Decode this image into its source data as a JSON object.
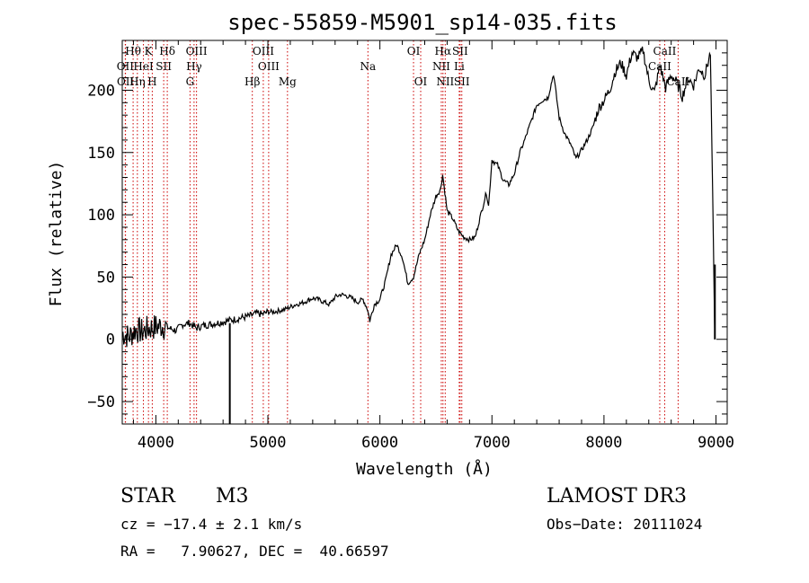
{
  "chart_data": {
    "type": "line",
    "title": "spec-55859-M5901_sp14-035.fits",
    "xlabel": "Wavelength (Å)",
    "ylabel": "Flux (relative)",
    "xlim": [
      3700,
      9100
    ],
    "ylim": [
      -68,
      240
    ],
    "xticks": [
      4000,
      5000,
      6000,
      7000,
      8000,
      9000
    ],
    "xtick_labels": [
      "4000",
      "5000",
      "6000",
      "7000",
      "8000",
      "9000"
    ],
    "yticks": [
      -50,
      0,
      50,
      100,
      150,
      200
    ],
    "ytick_labels": [
      "−50",
      "0",
      "50",
      "100",
      "150",
      "200"
    ],
    "series": [
      {
        "name": "flux",
        "x": [
          3700,
          3760,
          3820,
          3880,
          3940,
          4000,
          4060,
          4120,
          4180,
          4240,
          4300,
          4360,
          4420,
          4480,
          4540,
          4600,
          4650,
          4700,
          4750,
          4800,
          4850,
          4900,
          4950,
          5000,
          5050,
          5100,
          5150,
          5200,
          5250,
          5300,
          5350,
          5400,
          5450,
          5500,
          5550,
          5600,
          5650,
          5700,
          5750,
          5800,
          5850,
          5890,
          5910,
          5950,
          6000,
          6050,
          6100,
          6150,
          6200,
          6250,
          6300,
          6350,
          6400,
          6450,
          6500,
          6540,
          6560,
          6580,
          6600,
          6650,
          6700,
          6750,
          6800,
          6850,
          6900,
          6950,
          6970,
          7000,
          7050,
          7100,
          7150,
          7200,
          7250,
          7300,
          7350,
          7400,
          7450,
          7500,
          7550,
          7600,
          7650,
          7700,
          7750,
          7800,
          7850,
          7900,
          7950,
          8000,
          8050,
          8100,
          8150,
          8200,
          8250,
          8300,
          8350,
          8400,
          8450,
          8500,
          8550,
          8600,
          8650,
          8700,
          8750,
          8800,
          8850,
          8900,
          8950,
          8990
        ],
        "y": [
          5,
          2,
          8,
          6,
          9,
          10,
          11,
          9,
          7,
          12,
          13,
          9,
          11,
          12,
          13,
          14,
          15,
          16,
          17,
          18,
          19,
          21,
          20,
          22,
          22,
          23,
          24,
          26,
          28,
          29,
          31,
          33,
          32,
          30,
          28,
          34,
          36,
          35,
          33,
          30,
          32,
          24,
          15,
          28,
          32,
          47,
          68,
          76,
          66,
          45,
          50,
          68,
          80,
          100,
          115,
          120,
          132,
          118,
          103,
          97,
          87,
          82,
          80,
          82,
          100,
          118,
          107,
          144,
          140,
          128,
          124,
          133,
          150,
          162,
          175,
          188,
          192,
          194,
          213,
          178,
          165,
          157,
          145,
          152,
          160,
          170,
          185,
          192,
          200,
          215,
          222,
          212,
          230,
          226,
          232,
          208,
          198,
          220,
          202,
          212,
          206,
          195,
          210,
          204,
          218,
          212,
          230,
          0
        ]
      }
    ],
    "lines": [
      {
        "name": "Hθ",
        "x": 3797,
        "row": 0
      },
      {
        "name": "OII",
        "x": 3727,
        "row": 1
      },
      {
        "name": "OII",
        "x": 3729,
        "row": 2
      },
      {
        "name": "K",
        "x": 3934,
        "row": 0
      },
      {
        "name": "HeI",
        "x": 3889,
        "row": 1
      },
      {
        "name": "Hη",
        "x": 3835,
        "row": 2
      },
      {
        "name": "Hδ",
        "x": 4102,
        "row": 0
      },
      {
        "name": "SII",
        "x": 4070,
        "row": 1
      },
      {
        "name": "H",
        "x": 3968,
        "row": 2
      },
      {
        "name": "OIII",
        "x": 4363,
        "row": 0
      },
      {
        "name": "Hγ",
        "x": 4341,
        "row": 1
      },
      {
        "name": "G",
        "x": 4305,
        "row": 2
      },
      {
        "name": "OIII",
        "x": 4959,
        "row": 0
      },
      {
        "name": "OIII",
        "x": 5007,
        "row": 1
      },
      {
        "name": "Hβ",
        "x": 4861,
        "row": 2
      },
      {
        "name": "Mg",
        "x": 5175,
        "row": 2
      },
      {
        "name": "Na",
        "x": 5893,
        "row": 1
      },
      {
        "name": "OI",
        "x": 6300,
        "row": 0
      },
      {
        "name": "OI",
        "x": 6364,
        "row": 2
      },
      {
        "name": "Hα",
        "x": 6563,
        "row": 0
      },
      {
        "name": "NII",
        "x": 6548,
        "row": 1
      },
      {
        "name": "NII",
        "x": 6583,
        "row": 2
      },
      {
        "name": "SII",
        "x": 6716,
        "row": 0
      },
      {
        "name": "Li",
        "x": 6708,
        "row": 1
      },
      {
        "name": "SII",
        "x": 6731,
        "row": 2
      },
      {
        "name": "CaII",
        "x": 8542,
        "row": 0
      },
      {
        "name": "CaII",
        "x": 8498,
        "row": 1
      },
      {
        "name": "CaII",
        "x": 8662,
        "row": 2
      }
    ]
  },
  "info": {
    "object_type": "STAR",
    "subclass": "M3",
    "survey": "LAMOST DR3",
    "cz": "cz = −17.4 ± 2.1 km/s",
    "obs_date": "Obs−Date: 20111024",
    "radec": "RA =   7.90627, DEC =  40.66597"
  },
  "colors": {
    "line": "#000000",
    "marker": "#cc0000"
  }
}
